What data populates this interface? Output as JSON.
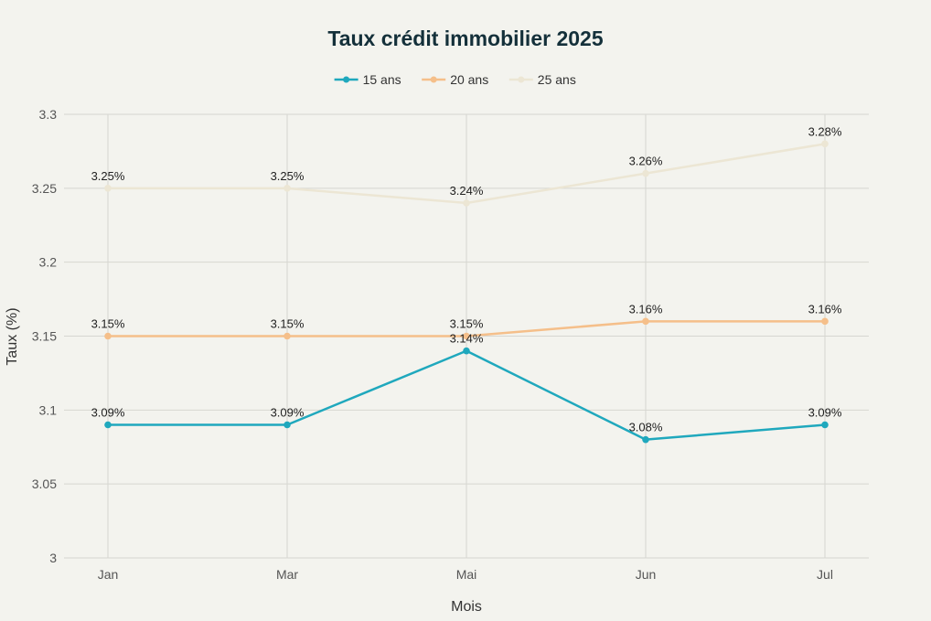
{
  "chart_data": {
    "type": "line",
    "title": "Taux crédit immobilier 2025",
    "xlabel": "Mois",
    "ylabel": "Taux (%)",
    "categories": [
      "Jan",
      "Mar",
      "Mai",
      "Jun",
      "Jul"
    ],
    "ylim": [
      3,
      3.3
    ],
    "yticks": [
      3,
      3.05,
      3.1,
      3.15,
      3.2,
      3.25,
      3.3
    ],
    "ytick_labels": [
      "3",
      "3.05",
      "3.1",
      "3.15",
      "3.2",
      "3.25",
      "3.3"
    ],
    "grid": true,
    "legend_position": "top-center",
    "series": [
      {
        "name": "15 ans",
        "color": "#1fa8bd",
        "values": [
          3.09,
          3.09,
          3.14,
          3.08,
          3.09
        ],
        "labels": [
          "3.09%",
          "3.09%",
          "3.14%",
          "3.08%",
          "3.09%"
        ]
      },
      {
        "name": "20 ans",
        "color": "#f5bf8a",
        "values": [
          3.15,
          3.15,
          3.15,
          3.16,
          3.16
        ],
        "labels": [
          "3.15%",
          "3.15%",
          "3.15%",
          "3.16%",
          "3.16%"
        ]
      },
      {
        "name": "25 ans",
        "color": "#ece6d4",
        "values": [
          3.25,
          3.25,
          3.24,
          3.26,
          3.28
        ],
        "labels": [
          "3.25%",
          "3.25%",
          "3.24%",
          "3.26%",
          "3.28%"
        ]
      }
    ]
  }
}
